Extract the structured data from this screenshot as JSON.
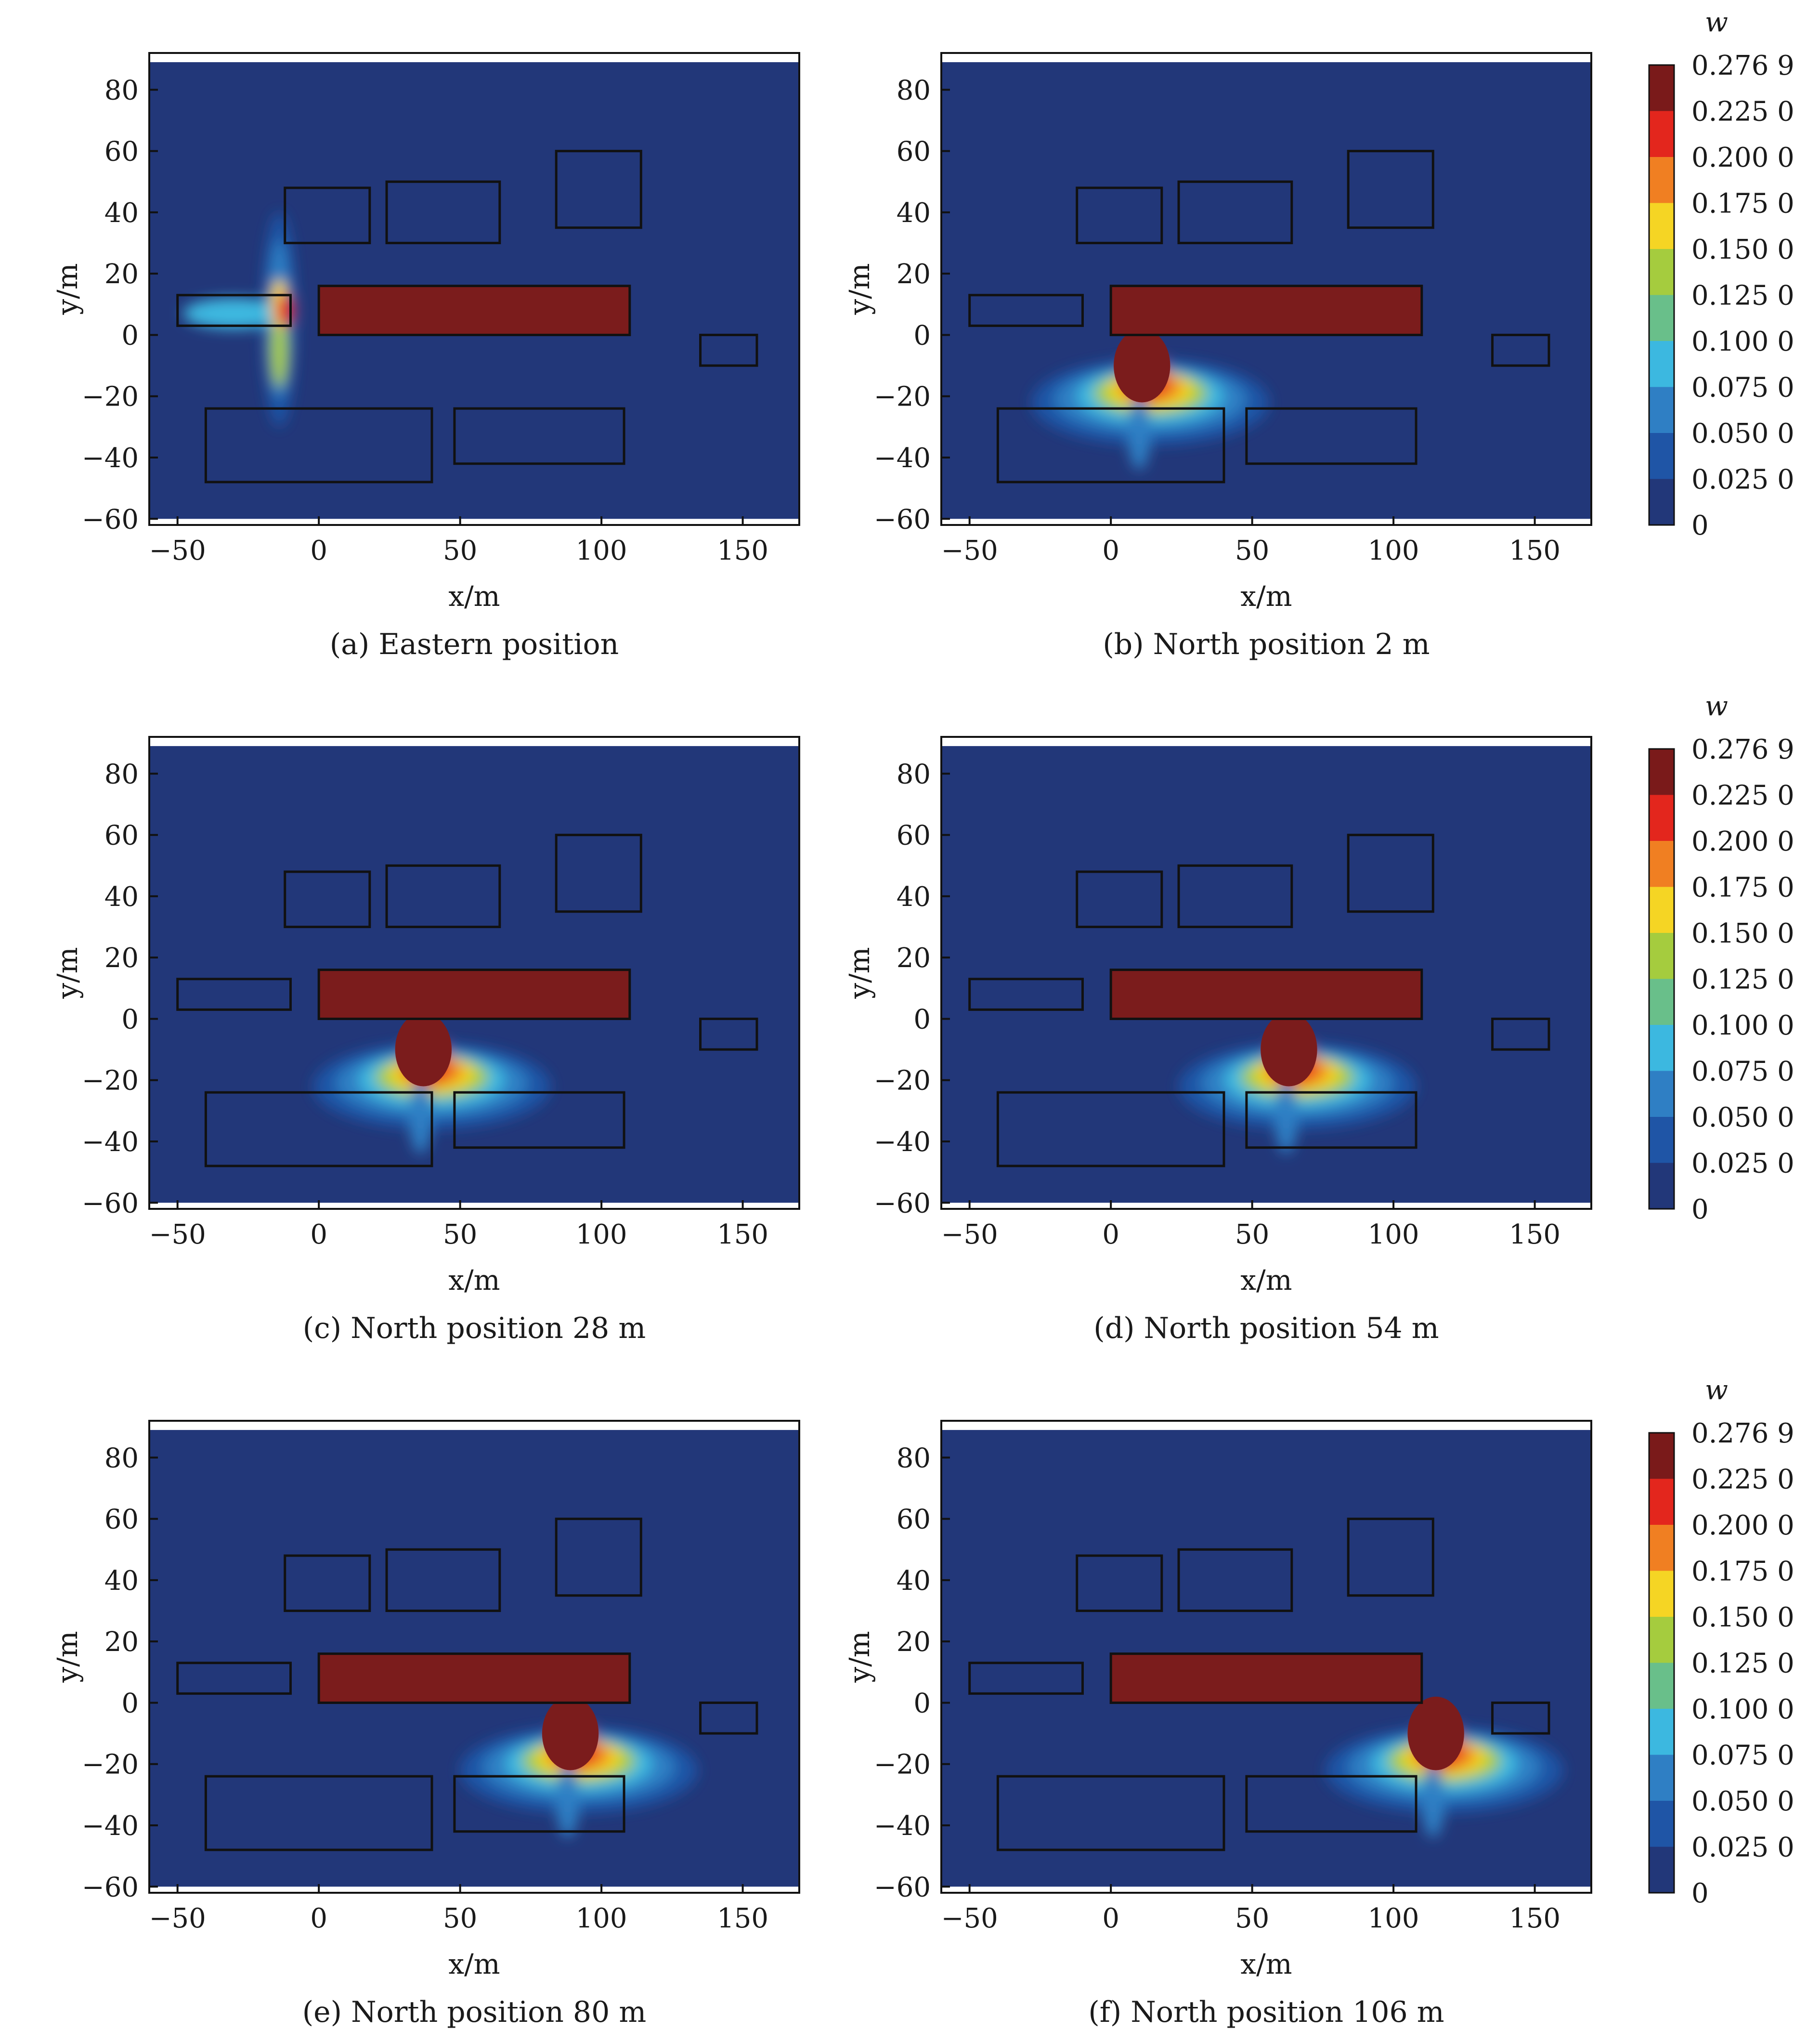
{
  "panels": [
    {
      "id": "a",
      "caption": "(a) Eastern position",
      "source_x": -10
    },
    {
      "id": "b",
      "caption": "(b) North position 2 m",
      "source_x": 2
    },
    {
      "id": "c",
      "caption": "(c) North position 28 m",
      "source_x": 28
    },
    {
      "id": "d",
      "caption": "(d) North position 54 m",
      "source_x": 54
    },
    {
      "id": "e",
      "caption": "(e) North position 80 m",
      "source_x": 80
    },
    {
      "id": "f",
      "caption": "(f) North position 106 m",
      "source_x": 106
    }
  ],
  "colorbar": {
    "title": "w",
    "labels": [
      "0.276 9",
      "0.225 0",
      "0.200 0",
      "0.175 0",
      "0.150 0",
      "0.125 0",
      "0.100 0",
      "0.075 0",
      "0.050 0",
      "0.025 0",
      "0"
    ],
    "colors": [
      "#7a1a1a",
      "#e3261d",
      "#f07f22",
      "#f5d524",
      "#a5cc3e",
      "#69bf8a",
      "#3cb8e0",
      "#2f7fc4",
      "#1f55a6",
      "#223779"
    ]
  },
  "chart_data": {
    "type": "heatmap",
    "xlabel": "x/m",
    "ylabel": "y/m",
    "xlim": [
      -60,
      170
    ],
    "ylim": [
      -62,
      92
    ],
    "xticks": [
      -50,
      0,
      50,
      100,
      150
    ],
    "yticks": [
      80,
      60,
      40,
      20,
      0,
      -20,
      -40,
      -60
    ],
    "background_color": "#223779",
    "source_color": "#7b1c1c",
    "buildings": [
      {
        "x0": 0,
        "x1": 110,
        "y0": 0,
        "y1": 16,
        "fill": true
      },
      {
        "x0": -50,
        "x1": -10,
        "y0": 3,
        "y1": 13
      },
      {
        "x0": -12,
        "x1": 18,
        "y0": 30,
        "y1": 48
      },
      {
        "x0": 24,
        "x1": 64,
        "y0": 30,
        "y1": 50
      },
      {
        "x0": 84,
        "x1": 114,
        "y0": 35,
        "y1": 60
      },
      {
        "x0": -40,
        "x1": 40,
        "y0": -48,
        "y1": -24
      },
      {
        "x0": 48,
        "x1": 108,
        "y0": -42,
        "y1": -24
      },
      {
        "x0": 135,
        "x1": 155,
        "y0": -10,
        "y1": 0
      }
    ]
  }
}
